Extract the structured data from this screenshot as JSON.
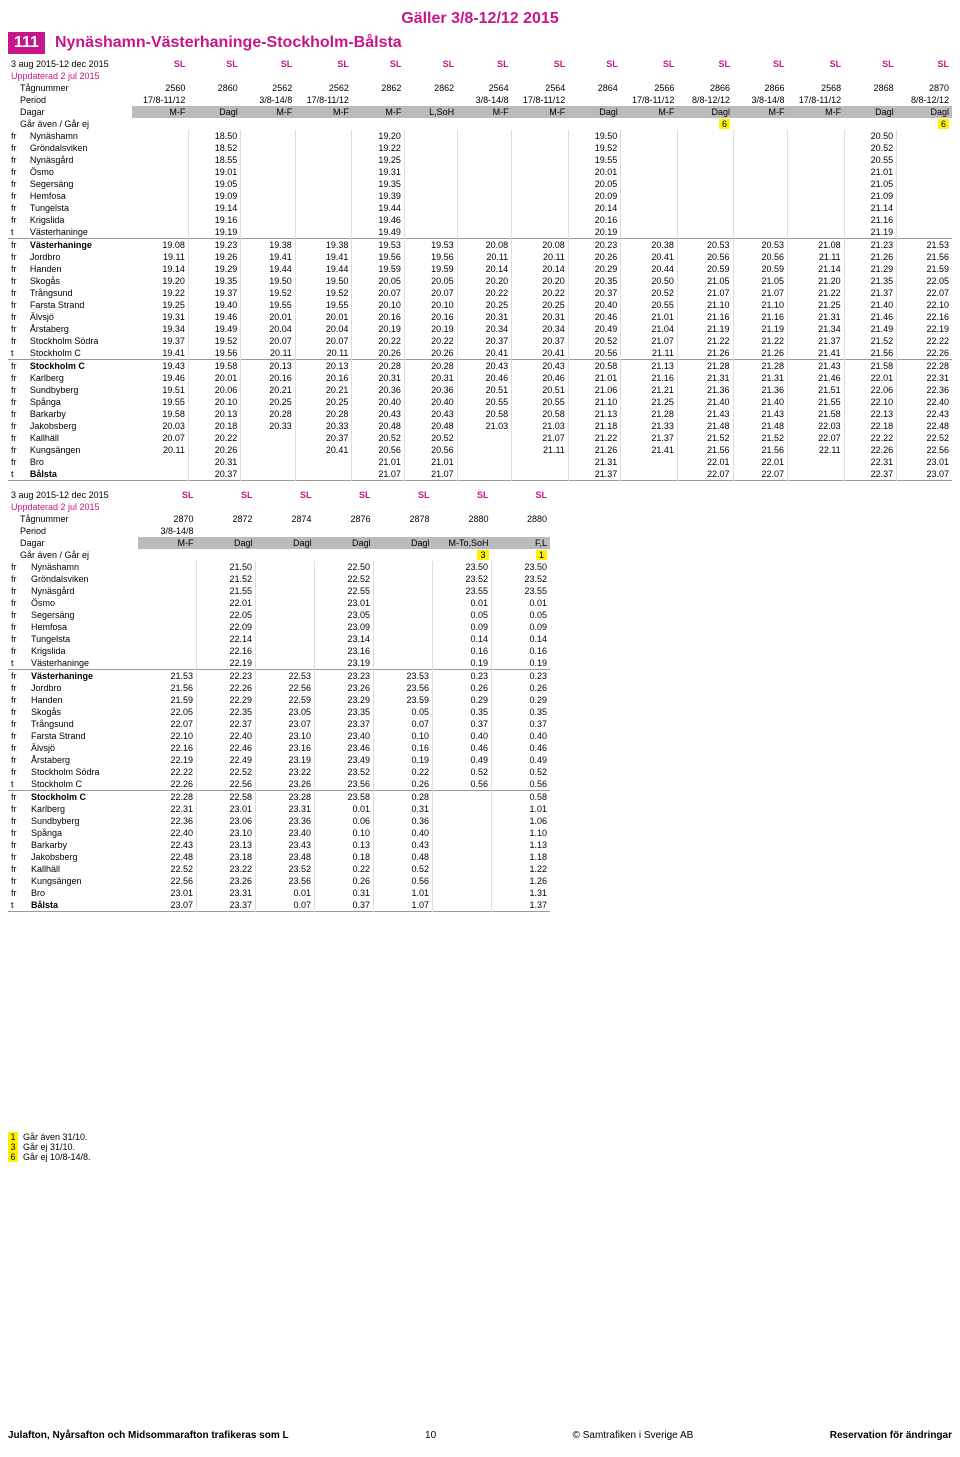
{
  "header": {
    "validity": "Gäller 3/8-12/12 2015",
    "route_number": "111",
    "route_name": "Nynäshamn-Västerhaninge-Stockholm-Bålsta"
  },
  "labels": {
    "daterange": "3 aug 2015-12 dec 2015",
    "updated": "Uppdaterad 2 jul 2015",
    "tagnummer": "Tågnummer",
    "period": "Period",
    "dagar": "Dagar",
    "notes": "Går även / Går ej",
    "sl": "SL"
  },
  "table1": {
    "trainnum": [
      "2560",
      "2860",
      "2562",
      "2562",
      "2862",
      "2862",
      "2564",
      "2564",
      "2864",
      "2566",
      "2866",
      "2866",
      "2568",
      "2868",
      "2870"
    ],
    "period": [
      "17/8-11/12",
      "",
      "3/8-14/8",
      "17/8-11/12",
      "",
      "",
      "3/8-14/8",
      "17/8-11/12",
      "",
      "17/8-11/12",
      "8/8-12/12",
      "3/8-14/8",
      "17/8-11/12",
      "",
      "8/8-12/12"
    ],
    "dagar": [
      "M-F",
      "Dagl",
      "M-F",
      "M-F",
      "M-F",
      "L,SoH",
      "M-F",
      "M-F",
      "Dagl",
      "M-F",
      "Dagl",
      "M-F",
      "M-F",
      "Dagl",
      "Dagl"
    ],
    "notes": [
      "",
      "",
      "",
      "",
      "",
      "",
      "",
      "",
      "",
      "",
      "6",
      "",
      "",
      "",
      "6"
    ],
    "stations": [
      {
        "op": "fr",
        "name": "Nynäshamn",
        "bold": false
      },
      {
        "op": "fr",
        "name": "Gröndalsviken",
        "bold": false
      },
      {
        "op": "fr",
        "name": "Nynäsgård",
        "bold": false
      },
      {
        "op": "fr",
        "name": "Ösmo",
        "bold": false
      },
      {
        "op": "fr",
        "name": "Segersäng",
        "bold": false
      },
      {
        "op": "fr",
        "name": "Hemfosa",
        "bold": false
      },
      {
        "op": "fr",
        "name": "Tungelsta",
        "bold": false
      },
      {
        "op": "fr",
        "name": "Krigslida",
        "bold": false
      },
      {
        "op": "t",
        "name": "Västerhaninge",
        "bold": false
      },
      {
        "op": "fr",
        "name": "Västerhaninge",
        "bold": true
      },
      {
        "op": "fr",
        "name": "Jordbro",
        "bold": false
      },
      {
        "op": "fr",
        "name": "Handen",
        "bold": false
      },
      {
        "op": "fr",
        "name": "Skogås",
        "bold": false
      },
      {
        "op": "fr",
        "name": "Trångsund",
        "bold": false
      },
      {
        "op": "fr",
        "name": "Farsta Strand",
        "bold": false
      },
      {
        "op": "fr",
        "name": "Älvsjö",
        "bold": false
      },
      {
        "op": "fr",
        "name": "Årstaberg",
        "bold": false
      },
      {
        "op": "fr",
        "name": "Stockholm Södra",
        "bold": false
      },
      {
        "op": "t",
        "name": "Stockholm C",
        "bold": false
      },
      {
        "op": "fr",
        "name": "Stockholm C",
        "bold": true
      },
      {
        "op": "fr",
        "name": "Karlberg",
        "bold": false
      },
      {
        "op": "fr",
        "name": "Sundbyberg",
        "bold": false
      },
      {
        "op": "fr",
        "name": "Spånga",
        "bold": false
      },
      {
        "op": "fr",
        "name": "Barkarby",
        "bold": false
      },
      {
        "op": "fr",
        "name": "Jakobsberg",
        "bold": false
      },
      {
        "op": "fr",
        "name": "Kallhäll",
        "bold": false
      },
      {
        "op": "fr",
        "name": "Kungsängen",
        "bold": false
      },
      {
        "op": "fr",
        "name": "Bro",
        "bold": false
      },
      {
        "op": "t",
        "name": "Bålsta",
        "bold": true
      }
    ],
    "times": [
      [
        "",
        "18.50",
        "",
        "",
        "19.20",
        "",
        "",
        "",
        "19.50",
        "",
        "",
        "",
        "",
        "20.50",
        ""
      ],
      [
        "",
        "18.52",
        "",
        "",
        "19.22",
        "",
        "",
        "",
        "19.52",
        "",
        "",
        "",
        "",
        "20.52",
        ""
      ],
      [
        "",
        "18.55",
        "",
        "",
        "19.25",
        "",
        "",
        "",
        "19.55",
        "",
        "",
        "",
        "",
        "20.55",
        ""
      ],
      [
        "",
        "19.01",
        "",
        "",
        "19.31",
        "",
        "",
        "",
        "20.01",
        "",
        "",
        "",
        "",
        "21.01",
        ""
      ],
      [
        "",
        "19.05",
        "",
        "",
        "19.35",
        "",
        "",
        "",
        "20.05",
        "",
        "",
        "",
        "",
        "21.05",
        ""
      ],
      [
        "",
        "19.09",
        "",
        "",
        "19.39",
        "",
        "",
        "",
        "20.09",
        "",
        "",
        "",
        "",
        "21.09",
        ""
      ],
      [
        "",
        "19.14",
        "",
        "",
        "19.44",
        "",
        "",
        "",
        "20.14",
        "",
        "",
        "",
        "",
        "21.14",
        ""
      ],
      [
        "",
        "19.16",
        "",
        "",
        "19.46",
        "",
        "",
        "",
        "20.16",
        "",
        "",
        "",
        "",
        "21.16",
        ""
      ],
      [
        "",
        "19.19",
        "",
        "",
        "19.49",
        "",
        "",
        "",
        "20.19",
        "",
        "",
        "",
        "",
        "21.19",
        ""
      ],
      [
        "19.08",
        "19.23",
        "19.38",
        "19.38",
        "19.53",
        "19.53",
        "20.08",
        "20.08",
        "20.23",
        "20.38",
        "20.53",
        "20.53",
        "21.08",
        "21.23",
        "21.53"
      ],
      [
        "19.11",
        "19.26",
        "19.41",
        "19.41",
        "19.56",
        "19.56",
        "20.11",
        "20.11",
        "20.26",
        "20.41",
        "20.56",
        "20.56",
        "21.11",
        "21.26",
        "21.56"
      ],
      [
        "19.14",
        "19.29",
        "19.44",
        "19.44",
        "19.59",
        "19.59",
        "20.14",
        "20.14",
        "20.29",
        "20.44",
        "20.59",
        "20.59",
        "21.14",
        "21.29",
        "21.59"
      ],
      [
        "19.20",
        "19.35",
        "19.50",
        "19.50",
        "20.05",
        "20.05",
        "20.20",
        "20.20",
        "20.35",
        "20.50",
        "21.05",
        "21.05",
        "21.20",
        "21.35",
        "22.05"
      ],
      [
        "19.22",
        "19.37",
        "19.52",
        "19.52",
        "20.07",
        "20.07",
        "20.22",
        "20.22",
        "20.37",
        "20.52",
        "21.07",
        "21.07",
        "21.22",
        "21.37",
        "22.07"
      ],
      [
        "19.25",
        "19.40",
        "19.55",
        "19.55",
        "20.10",
        "20.10",
        "20.25",
        "20.25",
        "20.40",
        "20.55",
        "21.10",
        "21.10",
        "21.25",
        "21.40",
        "22.10"
      ],
      [
        "19.31",
        "19.46",
        "20.01",
        "20.01",
        "20.16",
        "20.16",
        "20.31",
        "20.31",
        "20.46",
        "21.01",
        "21.16",
        "21.16",
        "21.31",
        "21.46",
        "22.16"
      ],
      [
        "19.34",
        "19.49",
        "20.04",
        "20.04",
        "20.19",
        "20.19",
        "20.34",
        "20.34",
        "20.49",
        "21.04",
        "21.19",
        "21.19",
        "21.34",
        "21.49",
        "22.19"
      ],
      [
        "19.37",
        "19.52",
        "20.07",
        "20.07",
        "20.22",
        "20.22",
        "20.37",
        "20.37",
        "20.52",
        "21.07",
        "21.22",
        "21.22",
        "21.37",
        "21.52",
        "22.22"
      ],
      [
        "19.41",
        "19.56",
        "20.11",
        "20.11",
        "20.26",
        "20.26",
        "20.41",
        "20.41",
        "20.56",
        "21.11",
        "21.26",
        "21.26",
        "21.41",
        "21.56",
        "22.26"
      ],
      [
        "19.43",
        "19.58",
        "20.13",
        "20.13",
        "20.28",
        "20.28",
        "20.43",
        "20.43",
        "20.58",
        "21.13",
        "21.28",
        "21.28",
        "21.43",
        "21.58",
        "22.28"
      ],
      [
        "19.46",
        "20.01",
        "20.16",
        "20.16",
        "20.31",
        "20.31",
        "20.46",
        "20.46",
        "21.01",
        "21.16",
        "21.31",
        "21.31",
        "21.46",
        "22.01",
        "22.31"
      ],
      [
        "19.51",
        "20.06",
        "20.21",
        "20.21",
        "20.36",
        "20.36",
        "20.51",
        "20.51",
        "21.06",
        "21.21",
        "21.36",
        "21.36",
        "21.51",
        "22.06",
        "22.36"
      ],
      [
        "19.55",
        "20.10",
        "20.25",
        "20.25",
        "20.40",
        "20.40",
        "20.55",
        "20.55",
        "21.10",
        "21.25",
        "21.40",
        "21.40",
        "21.55",
        "22.10",
        "22.40"
      ],
      [
        "19.58",
        "20.13",
        "20.28",
        "20.28",
        "20.43",
        "20.43",
        "20.58",
        "20.58",
        "21.13",
        "21.28",
        "21.43",
        "21.43",
        "21.58",
        "22.13",
        "22.43"
      ],
      [
        "20.03",
        "20.18",
        "20.33",
        "20.33",
        "20.48",
        "20.48",
        "21.03",
        "21.03",
        "21.18",
        "21.33",
        "21.48",
        "21.48",
        "22.03",
        "22.18",
        "22.48"
      ],
      [
        "20.07",
        "20.22",
        "",
        "20.37",
        "20.52",
        "20.52",
        "",
        "21.07",
        "21.22",
        "21.37",
        "21.52",
        "21.52",
        "22.07",
        "22.22",
        "22.52"
      ],
      [
        "20.11",
        "20.26",
        "",
        "20.41",
        "20.56",
        "20.56",
        "",
        "21.11",
        "21.26",
        "21.41",
        "21.56",
        "21.56",
        "22.11",
        "22.26",
        "22.56"
      ],
      [
        "",
        "20.31",
        "",
        "",
        "21.01",
        "21.01",
        "",
        "",
        "21.31",
        "",
        "22.01",
        "22.01",
        "",
        "22.31",
        "23.01"
      ],
      [
        "",
        "20.37",
        "",
        "",
        "21.07",
        "21.07",
        "",
        "",
        "21.37",
        "",
        "22.07",
        "22.07",
        "",
        "22.37",
        "23.07"
      ]
    ]
  },
  "table2": {
    "trainnum": [
      "2870",
      "2872",
      "2874",
      "2876",
      "2878",
      "2880",
      "2880"
    ],
    "period": [
      "3/8-14/8",
      "",
      "",
      "",
      "",
      "",
      ""
    ],
    "dagar": [
      "M-F",
      "Dagl",
      "Dagl",
      "Dagl",
      "Dagl",
      "M-To,SoH",
      "F,L"
    ],
    "notes": [
      "",
      "",
      "",
      "",
      "",
      "3",
      "1"
    ],
    "times": [
      [
        "",
        "21.50",
        "",
        "22.50",
        "",
        "23.50",
        "23.50"
      ],
      [
        "",
        "21.52",
        "",
        "22.52",
        "",
        "23.52",
        "23.52"
      ],
      [
        "",
        "21.55",
        "",
        "22.55",
        "",
        "23.55",
        "23.55"
      ],
      [
        "",
        "22.01",
        "",
        "23.01",
        "",
        "0.01",
        "0.01"
      ],
      [
        "",
        "22.05",
        "",
        "23.05",
        "",
        "0.05",
        "0.05"
      ],
      [
        "",
        "22.09",
        "",
        "23.09",
        "",
        "0.09",
        "0.09"
      ],
      [
        "",
        "22.14",
        "",
        "23.14",
        "",
        "0.14",
        "0.14"
      ],
      [
        "",
        "22.16",
        "",
        "23.16",
        "",
        "0.16",
        "0.16"
      ],
      [
        "",
        "22.19",
        "",
        "23.19",
        "",
        "0.19",
        "0.19"
      ],
      [
        "21.53",
        "22.23",
        "22.53",
        "23.23",
        "23.53",
        "0.23",
        "0.23"
      ],
      [
        "21.56",
        "22.26",
        "22.56",
        "23.26",
        "23.56",
        "0.26",
        "0.26"
      ],
      [
        "21.59",
        "22.29",
        "22.59",
        "23.29",
        "23.59",
        "0.29",
        "0.29"
      ],
      [
        "22.05",
        "22.35",
        "23.05",
        "23.35",
        "0.05",
        "0.35",
        "0.35"
      ],
      [
        "22.07",
        "22.37",
        "23.07",
        "23.37",
        "0.07",
        "0.37",
        "0.37"
      ],
      [
        "22.10",
        "22.40",
        "23.10",
        "23.40",
        "0.10",
        "0.40",
        "0.40"
      ],
      [
        "22.16",
        "22.46",
        "23.16",
        "23.46",
        "0.16",
        "0.46",
        "0.46"
      ],
      [
        "22.19",
        "22.49",
        "23.19",
        "23.49",
        "0.19",
        "0.49",
        "0.49"
      ],
      [
        "22.22",
        "22.52",
        "23.22",
        "23.52",
        "0.22",
        "0.52",
        "0.52"
      ],
      [
        "22.26",
        "22.56",
        "23.26",
        "23.56",
        "0.26",
        "0.56",
        "0.56"
      ],
      [
        "22.28",
        "22.58",
        "23.28",
        "23.58",
        "0.28",
        "",
        "0.58"
      ],
      [
        "22.31",
        "23.01",
        "23.31",
        "0.01",
        "0.31",
        "",
        "1.01"
      ],
      [
        "22.36",
        "23.06",
        "23.36",
        "0.06",
        "0.36",
        "",
        "1.06"
      ],
      [
        "22.40",
        "23.10",
        "23.40",
        "0.10",
        "0.40",
        "",
        "1.10"
      ],
      [
        "22.43",
        "23.13",
        "23.43",
        "0.13",
        "0.43",
        "",
        "1.13"
      ],
      [
        "22.48",
        "23.18",
        "23.48",
        "0.18",
        "0.48",
        "",
        "1.18"
      ],
      [
        "22.52",
        "23.22",
        "23.52",
        "0.22",
        "0.52",
        "",
        "1.22"
      ],
      [
        "22.56",
        "23.26",
        "23.56",
        "0.26",
        "0.56",
        "",
        "1.26"
      ],
      [
        "23.01",
        "23.31",
        "0.01",
        "0.31",
        "1.01",
        "",
        "1.31"
      ],
      [
        "23.07",
        "23.37",
        "0.07",
        "0.37",
        "1.07",
        "",
        "1.37"
      ]
    ]
  },
  "footnotes": [
    {
      "num": "1",
      "cls": "note1",
      "text": "Går även 31/10."
    },
    {
      "num": "3",
      "cls": "note3",
      "text": "Går ej 31/10."
    },
    {
      "num": "6",
      "cls": "note6",
      "text": "Går ej 10/8-14/8."
    }
  ],
  "footer": {
    "left": "Julafton, Nyårsafton och Midsommarafton trafikeras som L",
    "center_page": "10",
    "center_pub": "© Samtrafiken i Sverige AB",
    "right": "Reservation för ändringar"
  }
}
